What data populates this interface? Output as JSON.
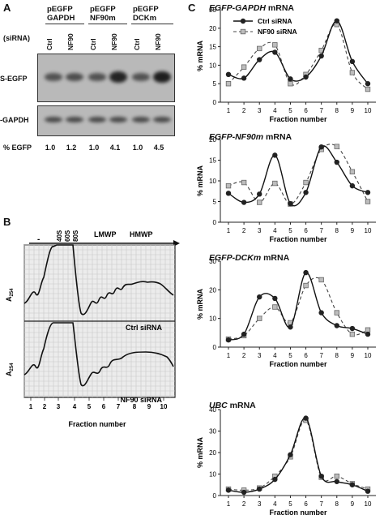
{
  "panelA": {
    "letter": "A",
    "headers": [
      {
        "line1": "pEGFP",
        "line2": "GAPDH"
      },
      {
        "line1": "pEGFP",
        "line2": "NF90m"
      },
      {
        "line1": "pEGFP",
        "line2": "DCKm"
      }
    ],
    "sirna_label": "(siRNA)",
    "lanes": [
      "Ctrl",
      "NF90",
      "Ctrl",
      "NF90",
      "Ctrl",
      "NF90"
    ],
    "blot_label_1": "S-EGFP",
    "blot_label_2": "-GAPDH",
    "pct_label": "% EGFP",
    "pct_values": [
      "1.0",
      "1.2",
      "1.0",
      "4.1",
      "1.0",
      "4.5"
    ],
    "egfp_intensity": [
      0.45,
      0.5,
      0.45,
      0.9,
      0.45,
      0.95
    ]
  },
  "panelB": {
    "letter": "B",
    "dash": "-",
    "markers": [
      "40S",
      "60S",
      "80S"
    ],
    "lmwp": "LMWP",
    "hmwp": "HMWP",
    "ylabel": "A",
    "ylabel_sub": "254",
    "top_label": "Ctrl siRNA",
    "bottom_label": "NF90 siRNA",
    "fractions": [
      "1",
      "2",
      "3",
      "4",
      "5",
      "6",
      "7",
      "8",
      "9",
      "10"
    ],
    "xlabel": "Fraction number"
  },
  "panelC": {
    "letter": "C",
    "legend": [
      "Ctrl siRNA",
      "NF90 siRNA"
    ],
    "ylabel": "% mRNA",
    "xlabel": "Fraction number",
    "charts": [
      {
        "title_gene": "EGFP-GAPDH",
        "title_suffix": " mRNA"
      },
      {
        "title_gene": "EGFP-NF90m",
        "title_suffix": " mRNA"
      },
      {
        "title_gene": "EGFP-DCKm",
        "title_suffix": " mRNA"
      },
      {
        "title_gene": "UBC",
        "title_suffix": " mRNA"
      }
    ]
  },
  "chart_data": [
    {
      "type": "line",
      "title": "EGFP-GAPDH mRNA",
      "xlabel": "Fraction number",
      "ylabel": "% mRNA",
      "x": [
        1,
        2,
        3,
        4,
        5,
        6,
        7,
        8,
        9,
        10
      ],
      "ylim": [
        0,
        25
      ],
      "yticks": [
        0,
        5,
        10,
        15,
        20,
        25
      ],
      "series": [
        {
          "name": "Ctrl siRNA",
          "values": [
            7.5,
            6.5,
            11.5,
            13.5,
            6.3,
            6.8,
            12.5,
            22,
            11,
            5
          ]
        },
        {
          "name": "NF90 siRNA",
          "values": [
            5,
            9.5,
            14.5,
            15.5,
            5,
            7.5,
            14,
            21,
            8,
            3.5
          ]
        }
      ]
    },
    {
      "type": "line",
      "title": "EGFP-NF90m mRNA",
      "xlabel": "Fraction number",
      "ylabel": "% mRNA",
      "x": [
        1,
        2,
        3,
        4,
        5,
        6,
        7,
        8,
        9,
        10
      ],
      "ylim": [
        0,
        20
      ],
      "yticks": [
        0,
        5,
        10,
        15,
        20
      ],
      "series": [
        {
          "name": "Ctrl siRNA",
          "values": [
            7,
            4.8,
            6.8,
            16.2,
            4.5,
            7.2,
            18.2,
            14.5,
            8.8,
            7.2
          ]
        },
        {
          "name": "NF90 siRNA",
          "values": [
            8.8,
            9.6,
            4.8,
            9.4,
            4.4,
            9.6,
            17.6,
            18.3,
            12.2,
            5
          ]
        }
      ]
    },
    {
      "type": "line",
      "title": "EGFP-DCKm mRNA",
      "xlabel": "Fraction number",
      "ylabel": "% mRNA",
      "x": [
        1,
        2,
        3,
        4,
        5,
        6,
        7,
        8,
        9,
        10
      ],
      "ylim": [
        0,
        30
      ],
      "yticks": [
        0,
        10,
        20,
        30
      ],
      "series": [
        {
          "name": "Ctrl siRNA",
          "values": [
            2.5,
            4.5,
            17.5,
            17,
            7,
            26,
            12,
            7.5,
            6.5,
            4.5
          ]
        },
        {
          "name": "NF90 siRNA",
          "values": [
            2.8,
            4,
            10,
            14,
            8.5,
            21.5,
            23.5,
            12,
            4.5,
            6
          ]
        }
      ]
    },
    {
      "type": "line",
      "title": "UBC mRNA",
      "xlabel": "Fraction number",
      "ylabel": "% mRNA",
      "x": [
        1,
        2,
        3,
        4,
        5,
        6,
        7,
        8,
        9,
        10
      ],
      "ylim": [
        0,
        40
      ],
      "yticks": [
        0,
        10,
        20,
        30,
        40
      ],
      "series": [
        {
          "name": "Ctrl siRNA",
          "values": [
            2.5,
            1.5,
            3,
            7.5,
            19,
            36,
            9,
            6.5,
            5,
            2
          ]
        },
        {
          "name": "NF90 siRNA",
          "values": [
            3,
            2.5,
            3.5,
            9,
            18,
            35,
            8.5,
            9,
            5.5,
            3
          ]
        }
      ]
    }
  ]
}
